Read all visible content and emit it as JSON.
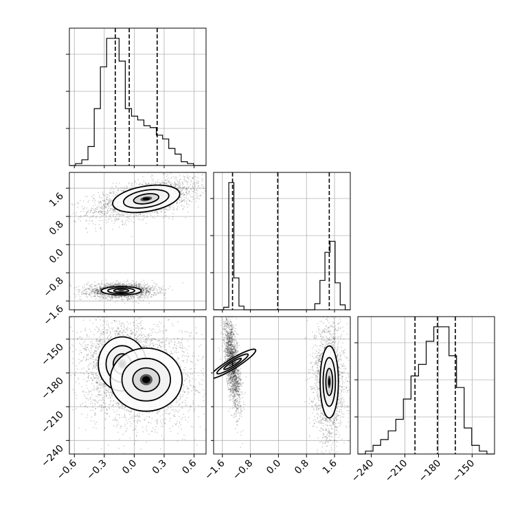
{
  "chart_data": {
    "type": "corner",
    "parameters": [
      "p0",
      "p1",
      "p2"
    ],
    "ranges": {
      "p0": [
        -0.65,
        0.72
      ],
      "p1": [
        -1.85,
        2.05
      ],
      "p2": [
        -252,
        -130
      ]
    },
    "ticks": {
      "p0": [
        -0.6,
        -0.3,
        0.0,
        0.3,
        0.6
      ],
      "p1": [
        -1.6,
        -0.8,
        0.0,
        0.8,
        1.6
      ],
      "p2": [
        -240,
        -210,
        -180,
        -150
      ]
    },
    "tick_labels": {
      "p0": [
        "−0.6",
        "−0.3",
        "0.0",
        "0.3",
        "0.6"
      ],
      "p1": [
        "−1.6",
        "−0.8",
        "0.0",
        "0.8",
        "1.6"
      ],
      "p2": [
        "−240",
        "−210",
        "−180",
        "−150"
      ],
      "p2_diag": [
        "−240",
        "−210",
        "−180",
        "−150"
      ]
    },
    "quantiles": {
      "p0": [
        -0.19,
        -0.05,
        0.23
      ],
      "p1": [
        -1.31,
        -0.02,
        1.45
      ],
      "p2": [
        -201,
        -181,
        -165
      ]
    },
    "histograms": {
      "p0": {
        "range": [
          -0.65,
          0.72
        ],
        "counts": [
          0,
          1,
          3,
          10,
          30,
          52,
          67,
          67,
          55,
          30,
          26,
          24,
          21,
          20,
          16,
          14,
          9,
          6,
          2,
          1,
          0,
          0
        ]
      },
      "p1": {
        "range": [
          -1.85,
          2.05
        ],
        "counts": [
          0,
          0,
          2,
          104,
          26,
          3,
          0,
          0,
          0,
          0,
          0,
          0,
          0,
          0,
          0,
          0,
          0,
          0,
          0,
          0,
          5,
          24,
          47,
          56,
          22,
          4,
          0
        ]
      },
      "p2": {
        "range": [
          -252,
          -130
        ],
        "counts": [
          0,
          1,
          3,
          5,
          8,
          12,
          19,
          27,
          31,
          39,
          44,
          44,
          34,
          23,
          9,
          3,
          1,
          0
        ]
      }
    },
    "grid": true
  }
}
